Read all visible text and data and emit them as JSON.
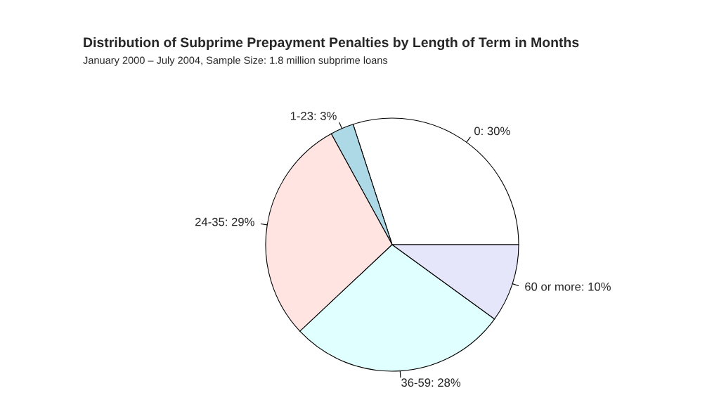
{
  "chart_data": {
    "type": "pie",
    "title": "Distribution of Subprime Prepayment Penalties by Length of Term in Months",
    "subtitle": "January 2000 – July 2004, Sample Size: 1.8 million subprime loans",
    "categories": [
      "0: 30%",
      "1-23: 3%",
      "24-35: 29%",
      "36-59: 28%",
      "60 or more: 10%"
    ],
    "values": [
      30,
      3,
      29,
      28,
      10
    ],
    "colors": [
      "#ffffff",
      "#add8e6",
      "#ffe4e1",
      "#e0ffff",
      "#e6e6fa"
    ]
  }
}
